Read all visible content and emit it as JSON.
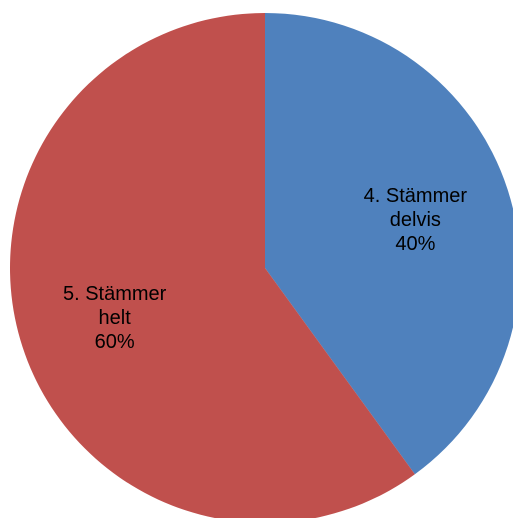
{
  "chart_data": {
    "type": "pie",
    "title": "",
    "legend": "none",
    "slices": [
      {
        "category": "4. Stämmer delvis",
        "label_lines": [
          "4. Stämmer",
          "delvis"
        ],
        "value": 40,
        "percent_label": "40%",
        "color": "#4F81BD"
      },
      {
        "category": "5. Stämmer helt",
        "label_lines": [
          "5. Stämmer",
          "helt"
        ],
        "value": 60,
        "percent_label": "60%",
        "color": "#C0504D"
      }
    ]
  }
}
